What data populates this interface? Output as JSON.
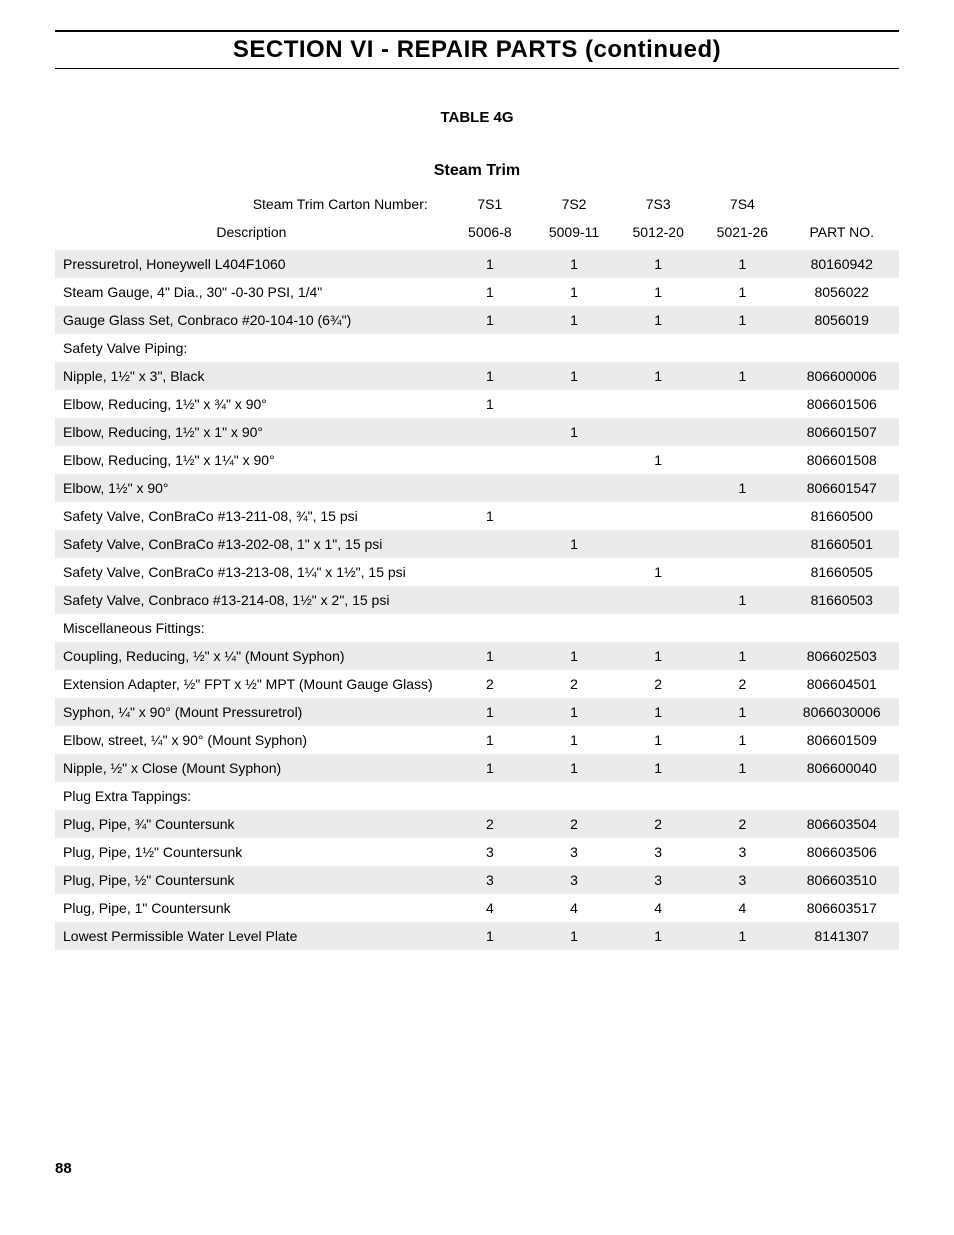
{
  "section_title": "SECTION VI - REPAIR PARTS (continued)",
  "table_label": "TABLE 4G",
  "table_title": "Steam Trim",
  "header": {
    "carton_label": "Steam Trim Carton Number:",
    "cartons": [
      "7S1",
      "7S2",
      "7S3",
      "7S4"
    ],
    "description_label": "Description",
    "model_cols": [
      "5006-8",
      "5009-11",
      "5012-20",
      "5021-26"
    ],
    "part_no_label": "PART NO."
  },
  "rows": [
    {
      "desc": "Pressuretrol, Honeywell L404F1060",
      "v": [
        "1",
        "1",
        "1",
        "1"
      ],
      "part": "80160942"
    },
    {
      "desc": "Steam Gauge, 4\" Dia., 30\" -0-30 PSI, 1/4\"",
      "v": [
        "1",
        "1",
        "1",
        "1"
      ],
      "part": "8056022"
    },
    {
      "desc": "Gauge Glass Set, Conbraco #20-104-10 (6¾\")",
      "v": [
        "1",
        "1",
        "1",
        "1"
      ],
      "part": "8056019"
    },
    {
      "desc": "Safety Valve Piping:",
      "v": [
        "",
        "",
        "",
        ""
      ],
      "part": ""
    },
    {
      "desc": "Nipple, 1½\" x 3\", Black",
      "v": [
        "1",
        "1",
        "1",
        "1"
      ],
      "part": "806600006"
    },
    {
      "desc": "Elbow, Reducing, 1½\" x ¾\" x 90°",
      "v": [
        "1",
        "",
        "",
        ""
      ],
      "part": "806601506"
    },
    {
      "desc": "Elbow, Reducing, 1½\" x 1\" x 90°",
      "v": [
        "",
        "1",
        "",
        ""
      ],
      "part": "806601507"
    },
    {
      "desc": "Elbow, Reducing, 1½\" x 1¼\" x 90°",
      "v": [
        "",
        "",
        "1",
        ""
      ],
      "part": "806601508"
    },
    {
      "desc": "Elbow, 1½\" x 90°",
      "v": [
        "",
        "",
        "",
        "1"
      ],
      "part": "806601547"
    },
    {
      "desc": "Safety Valve, ConBraCo #13-211-08, ¾\", 15 psi",
      "v": [
        "1",
        "",
        "",
        ""
      ],
      "part": "81660500"
    },
    {
      "desc": "Safety Valve, ConBraCo #13-202-08, 1\" x 1\", 15 psi",
      "v": [
        "",
        "1",
        "",
        ""
      ],
      "part": "81660501"
    },
    {
      "desc": "Safety Valve, ConBraCo #13-213-08, 1¼\" x 1½\", 15 psi",
      "v": [
        "",
        "",
        "1",
        ""
      ],
      "part": "81660505"
    },
    {
      "desc": "Safety Valve, Conbraco #13-214-08, 1½\" x 2\", 15 psi",
      "v": [
        "",
        "",
        "",
        "1"
      ],
      "part": "81660503"
    },
    {
      "desc": "Miscellaneous Fittings:",
      "v": [
        "",
        "",
        "",
        ""
      ],
      "part": ""
    },
    {
      "desc": "Coupling, Reducing, ½\" x ¼\" (Mount Syphon)",
      "v": [
        "1",
        "1",
        "1",
        "1"
      ],
      "part": "806602503"
    },
    {
      "desc": "Extension Adapter, ½\" FPT x ½\" MPT (Mount Gauge Glass)",
      "v": [
        "2",
        "2",
        "2",
        "2"
      ],
      "part": "806604501"
    },
    {
      "desc": "Syphon, ¼\" x 90° (Mount Pressuretrol)",
      "v": [
        "1",
        "1",
        "1",
        "1"
      ],
      "part": "8066030006"
    },
    {
      "desc": "Elbow, street, ¼\" x 90° (Mount Syphon)",
      "v": [
        "1",
        "1",
        "1",
        "1"
      ],
      "part": "806601509"
    },
    {
      "desc": "Nipple, ½\" x Close (Mount Syphon)",
      "v": [
        "1",
        "1",
        "1",
        "1"
      ],
      "part": "806600040"
    },
    {
      "desc": "Plug Extra Tappings:",
      "v": [
        "",
        "",
        "",
        ""
      ],
      "part": ""
    },
    {
      "desc": "Plug, Pipe, ¾\" Countersunk",
      "v": [
        "2",
        "2",
        "2",
        "2"
      ],
      "part": "806603504"
    },
    {
      "desc": "Plug, Pipe, 1½\" Countersunk",
      "v": [
        "3",
        "3",
        "3",
        "3"
      ],
      "part": "806603506"
    },
    {
      "desc": "Plug, Pipe, ½\" Countersunk",
      "v": [
        "3",
        "3",
        "3",
        "3"
      ],
      "part": "806603510"
    },
    {
      "desc": "Plug, Pipe, 1\" Countersunk",
      "v": [
        "4",
        "4",
        "4",
        "4"
      ],
      "part": "806603517"
    },
    {
      "desc": "Lowest Permissible Water Level Plate",
      "v": [
        "1",
        "1",
        "1",
        "1"
      ],
      "part": "8141307"
    }
  ],
  "page_number": "88",
  "style": {
    "row_alt_bg": "#ebebeb",
    "row_bg": "#ffffff",
    "text_color": "#000000",
    "font_family": "Arial, Helvetica, sans-serif",
    "body_font_size": 14,
    "title_font_size": 24
  }
}
